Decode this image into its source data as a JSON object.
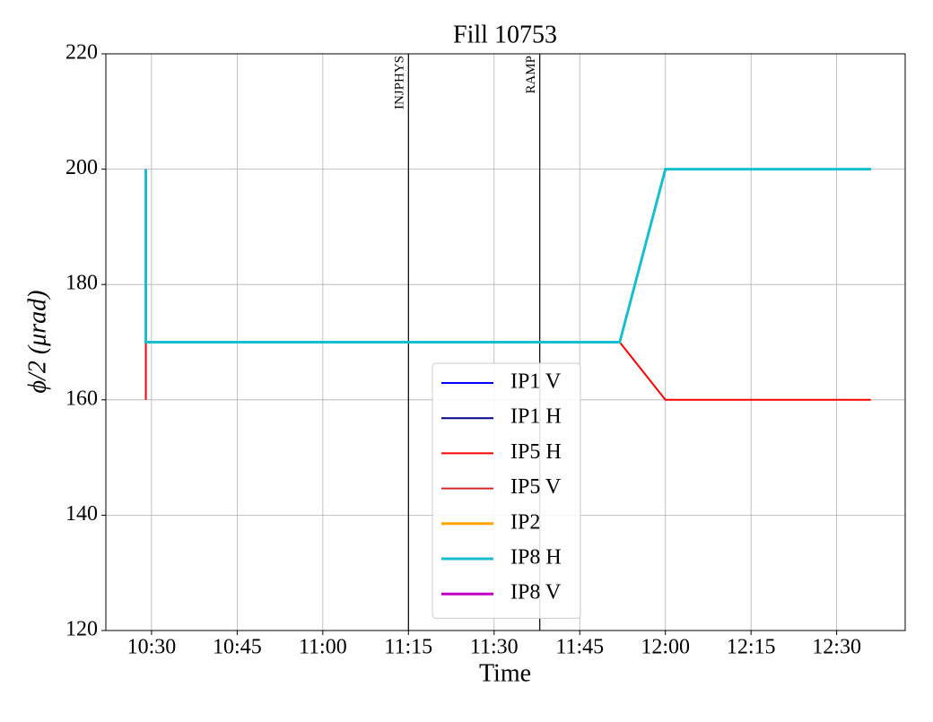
{
  "chart_data": {
    "type": "line",
    "title": "Fill 10753",
    "x_label": "Time",
    "y_label": "ϕ/2 (μrad)",
    "x": [
      "10:29",
      "10:29",
      "11:52",
      "12:00",
      "12:36"
    ],
    "xlim": [
      "10:22",
      "12:42"
    ],
    "xticks": [
      "10:30",
      "10:45",
      "11:00",
      "11:15",
      "11:30",
      "11:45",
      "12:00",
      "12:15",
      "12:30"
    ],
    "ylim": [
      120,
      220
    ],
    "yticks": [
      120,
      140,
      160,
      180,
      200,
      220
    ],
    "grid": true,
    "legend": "lower center",
    "series": [
      {
        "name": "IP1 V",
        "color": "#0000ff",
        "values": [
          200,
          170,
          170,
          200,
          200
        ]
      },
      {
        "name": "IP1 H",
        "color": "#00008b",
        "values": [
          200,
          170,
          170,
          200,
          200
        ]
      },
      {
        "name": "IP5 H",
        "color": "#ff0000",
        "values": [
          160,
          170,
          170,
          160,
          160
        ]
      },
      {
        "name": "IP5 V",
        "color": "#d62728",
        "values": [
          null,
          null,
          null,
          null,
          null
        ]
      },
      {
        "name": "IP2",
        "color": "#ffa500",
        "values": [
          null,
          null,
          null,
          null,
          null
        ]
      },
      {
        "name": "IP8 H",
        "color": "#17becf",
        "values": [
          200,
          170,
          170,
          200,
          200
        ]
      },
      {
        "name": "IP8 V",
        "color": "#bf00bf",
        "values": [
          null,
          null,
          null,
          null,
          null
        ]
      }
    ],
    "vlines": [
      {
        "x": "11:15",
        "label": "INJPHYS"
      },
      {
        "x": "11:38",
        "label": "RAMP"
      }
    ]
  }
}
